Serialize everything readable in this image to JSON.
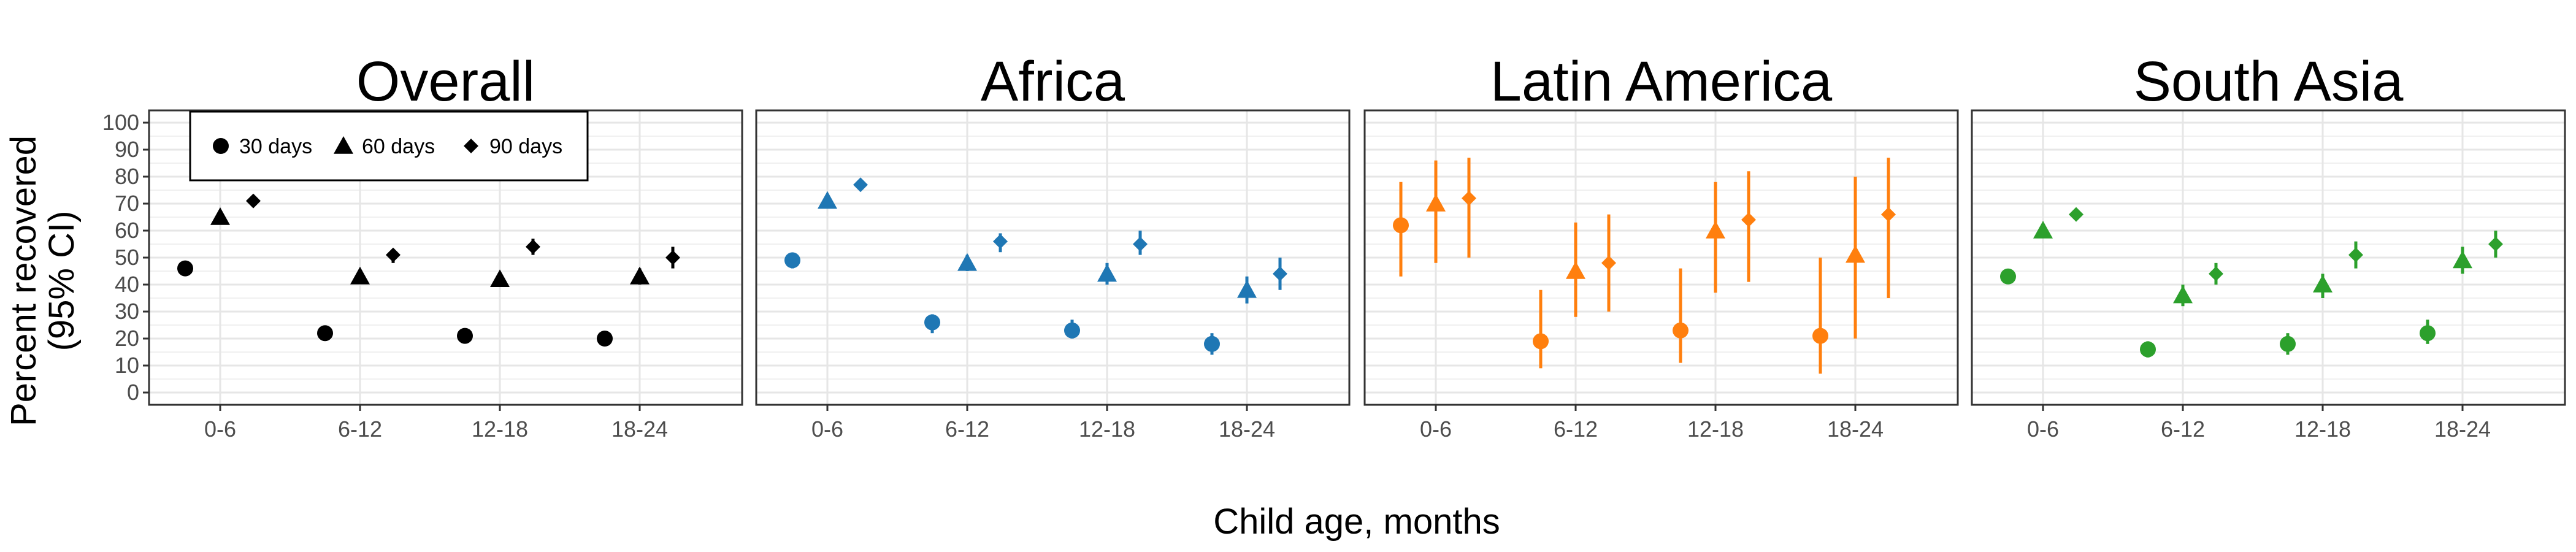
{
  "chart_data": {
    "type": "scatter",
    "subtype": "point-range by facet",
    "xlabel": "Child age, months",
    "ylabel_lines": [
      "Percent recovered",
      "(95% CI)"
    ],
    "categories": [
      "0-6",
      "6-12",
      "12-18",
      "18-24"
    ],
    "ylim": [
      0,
      100
    ],
    "yticks": [
      0,
      10,
      20,
      30,
      40,
      50,
      60,
      70,
      80,
      90,
      100
    ],
    "grid": true,
    "legend": {
      "placement": "top-left inside first panel",
      "entries": [
        {
          "label": "30 days",
          "shape": "circle"
        },
        {
          "label": "60 days",
          "shape": "triangle"
        },
        {
          "label": "90 days",
          "shape": "diamond"
        }
      ]
    },
    "panels": [
      {
        "title": "Overall",
        "color": "#000000",
        "series": [
          {
            "name": "30 days",
            "shape": "circle",
            "values": [
              46,
              22,
              21,
              20
            ],
            "lower": [
              45,
              21,
              20,
              19
            ],
            "upper": [
              47,
              23,
              23,
              21
            ]
          },
          {
            "name": "60 days",
            "shape": "triangle",
            "values": [
              65,
              43,
              42,
              43
            ],
            "lower": [
              64,
              41,
              40,
              40
            ],
            "upper": [
              66,
              45,
              44,
              46
            ]
          },
          {
            "name": "90 days",
            "shape": "diamond",
            "values": [
              71,
              51,
              54,
              50
            ],
            "lower": [
              70,
              48,
              51,
              46
            ],
            "upper": [
              72,
              53,
              57,
              54
            ]
          }
        ]
      },
      {
        "title": "Africa",
        "color": "#1f77b4",
        "series": [
          {
            "name": "30 days",
            "shape": "circle",
            "values": [
              49,
              26,
              23,
              18
            ],
            "lower": [
              46,
              22,
              20,
              14
            ],
            "upper": [
              51,
              29,
              27,
              22
            ]
          },
          {
            "name": "60 days",
            "shape": "triangle",
            "values": [
              71,
              48,
              44,
              38
            ],
            "lower": [
              69,
              45,
              40,
              33
            ],
            "upper": [
              72,
              51,
              48,
              43
            ]
          },
          {
            "name": "90 days",
            "shape": "diamond",
            "values": [
              77,
              56,
              55,
              44
            ],
            "lower": [
              75,
              52,
              51,
              38
            ],
            "upper": [
              78,
              59,
              60,
              50
            ]
          }
        ]
      },
      {
        "title": "Latin America",
        "color": "#ff7f0e",
        "series": [
          {
            "name": "30 days",
            "shape": "circle",
            "values": [
              62,
              19,
              23,
              21
            ],
            "lower": [
              43,
              9,
              11,
              7
            ],
            "upper": [
              78,
              38,
              46,
              50
            ]
          },
          {
            "name": "60 days",
            "shape": "triangle",
            "values": [
              70,
              45,
              60,
              51
            ],
            "lower": [
              48,
              28,
              37,
              20
            ],
            "upper": [
              86,
              63,
              78,
              80
            ]
          },
          {
            "name": "90 days",
            "shape": "diamond",
            "values": [
              72,
              48,
              64,
              66
            ],
            "lower": [
              50,
              30,
              41,
              35
            ],
            "upper": [
              87,
              66,
              82,
              87
            ]
          }
        ]
      },
      {
        "title": "South Asia",
        "color": "#2ca02c",
        "series": [
          {
            "name": "30 days",
            "shape": "circle",
            "values": [
              43,
              16,
              18,
              22
            ],
            "lower": [
              41,
              13,
              14,
              18
            ],
            "upper": [
              45,
              19,
              22,
              27
            ]
          },
          {
            "name": "60 days",
            "shape": "triangle",
            "values": [
              60,
              36,
              40,
              49
            ],
            "lower": [
              58,
              32,
              35,
              44
            ],
            "upper": [
              62,
              40,
              44,
              54
            ]
          },
          {
            "name": "90 days",
            "shape": "diamond",
            "values": [
              66,
              44,
              51,
              55
            ],
            "lower": [
              64,
              40,
              46,
              50
            ],
            "upper": [
              68,
              48,
              56,
              60
            ]
          }
        ]
      }
    ]
  }
}
